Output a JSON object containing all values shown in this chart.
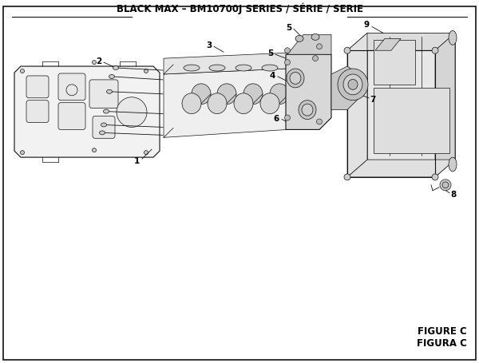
{
  "title": "BLACK MAX – BM10700J SERIES / SÉRIE / SERIE",
  "figure_label": "FIGURE C",
  "figura_label": "FIGURA C",
  "bg_color": "#ffffff",
  "border_color": "#111111",
  "line_color": "#111111",
  "title_fontsize": 8.5,
  "label_fontsize": 7.5,
  "figure_label_fontsize": 8.5
}
